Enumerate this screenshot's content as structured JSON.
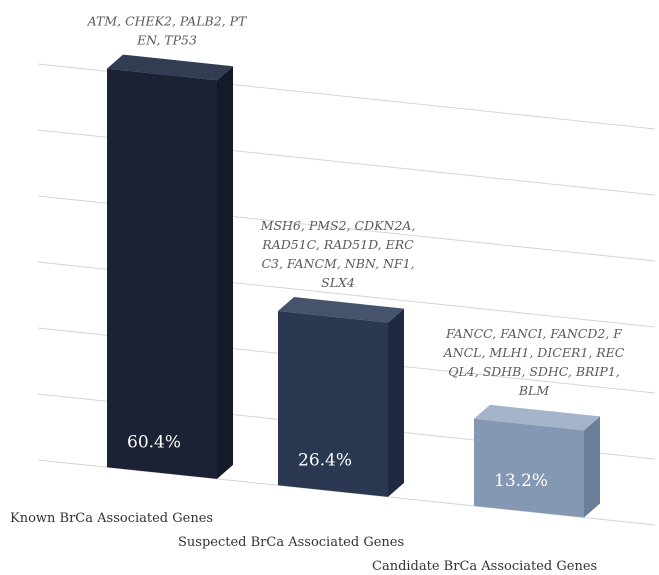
{
  "chart_data": {
    "type": "bar",
    "title": "",
    "xlabel": "",
    "ylabel": "",
    "ylim": [
      0,
      70
    ],
    "grid": true,
    "categories": [
      "Known BrCa Associated Genes",
      "Suspected BrCa Associated Genes",
      "Candidate BrCa Associated Genes"
    ],
    "values": [
      60.4,
      26.4,
      13.2
    ],
    "value_labels": [
      "60.4%",
      "26.4%",
      "13.2%"
    ],
    "gene_annotations": [
      [
        "ATM, CHEK2, PALB2, PT",
        "EN, TP53"
      ],
      [
        "MSH6, PMS2, CDKN2A,",
        "RAD51C, RAD51D, ERC",
        "C3, FANCM, NBN, NF1,",
        "SLX4"
      ],
      [
        "FANCC, FANCI, FANCD2, F",
        "ANCL, MLH1, DICER1, REC",
        "QL4, SDHB, SDHC, BRIP1,",
        "BLM"
      ]
    ],
    "colors": {
      "front": [
        "#1b2233",
        "#2b3852",
        "#8497b3"
      ],
      "top": [
        "#323c52",
        "#46536d",
        "#a4b4cb"
      ],
      "side": [
        "#141a28",
        "#1f2a40",
        "#6a7d99"
      ]
    }
  }
}
